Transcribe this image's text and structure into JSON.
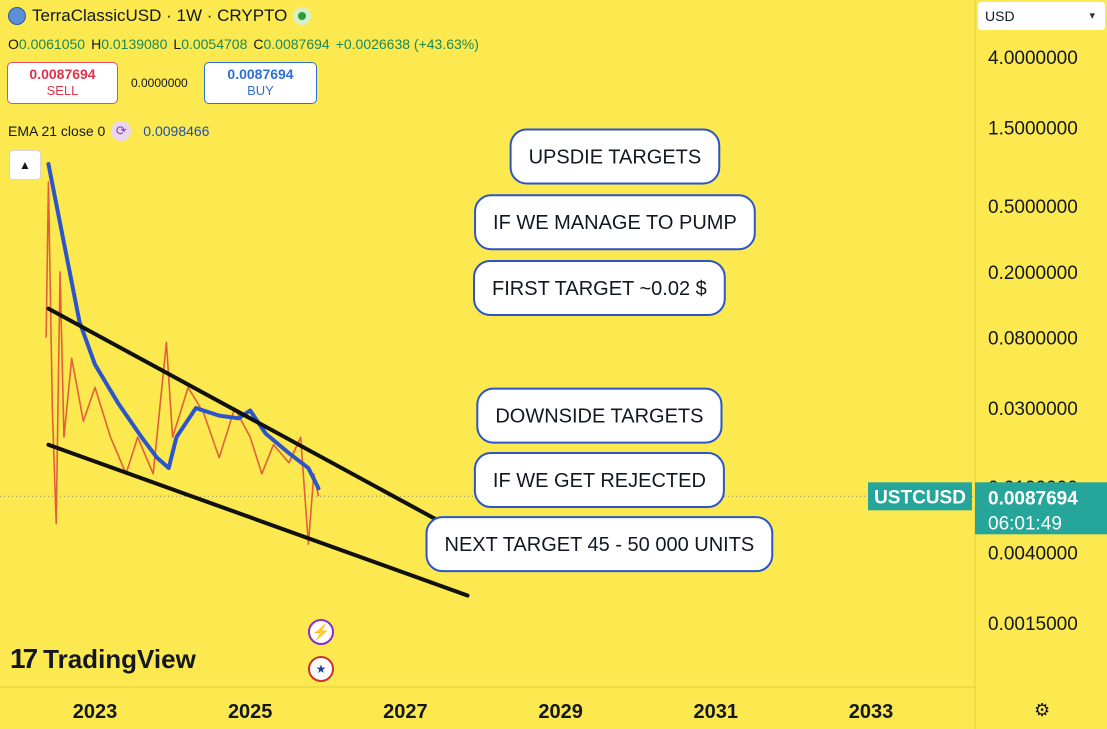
{
  "header": {
    "symbol_title": "TerraClassicUSD · 1W · CRYPTO",
    "logo_icon": "terra-logo-icon",
    "live_icon": "market-open-dot-icon"
  },
  "ohlc": {
    "o_label": "O",
    "o_value": "0.0061050",
    "h_label": "H",
    "h_value": "0.0139080",
    "l_label": "L",
    "l_value": "0.0054708",
    "c_label": "C",
    "c_value": "0.0087694",
    "change": "+0.0026638 (+43.63%)"
  },
  "trade": {
    "sell_price": "0.0087694",
    "sell_label": "SELL",
    "spread": "0.0000000",
    "buy_price": "0.0087694",
    "buy_label": "BUY"
  },
  "indicator": {
    "label": "EMA 21 close 0",
    "value": "0.0098466"
  },
  "currency": {
    "selected": "USD"
  },
  "price_tag": {
    "symbol": "USTCUSD",
    "price": "0.0087694",
    "countdown": "06:01:49"
  },
  "branding": {
    "logo_text": "TradingView",
    "logo_mark": "17"
  },
  "colors": {
    "background": "#FBE94F",
    "ema_line": "#2B55C8",
    "candle": "#E0503A",
    "trendline": "#111111",
    "price_tag": "#26A69A",
    "callout_border": "#2B55C8"
  },
  "chart_data": {
    "type": "line",
    "y_scale": "log",
    "y_ticks": [
      "4.0000000",
      "1.5000000",
      "0.5000000",
      "0.2000000",
      "0.0800000",
      "0.0300000",
      "0.0100000",
      "0.0040000",
      "0.0015000"
    ],
    "x_ticks": [
      "2023",
      "2025",
      "2027",
      "2029",
      "2031",
      "2033"
    ],
    "current_price": 0.0087694,
    "ema_series": {
      "name": "EMA 21 close 0",
      "points": [
        [
          2022.4,
          0.9
        ],
        [
          2022.6,
          0.3
        ],
        [
          2022.8,
          0.1
        ],
        [
          2023.0,
          0.055
        ],
        [
          2023.3,
          0.032
        ],
        [
          2023.6,
          0.02
        ],
        [
          2023.8,
          0.015
        ],
        [
          2023.95,
          0.013
        ],
        [
          2024.05,
          0.02
        ],
        [
          2024.3,
          0.03
        ],
        [
          2024.6,
          0.027
        ],
        [
          2024.85,
          0.026
        ],
        [
          2025.0,
          0.029
        ],
        [
          2025.2,
          0.021
        ],
        [
          2025.5,
          0.016
        ],
        [
          2025.75,
          0.013
        ],
        [
          2025.88,
          0.0098
        ]
      ]
    },
    "price_series": {
      "name": "TerraClassicUSD",
      "points": [
        [
          2022.37,
          0.08
        ],
        [
          2022.4,
          0.7
        ],
        [
          2022.45,
          0.03
        ],
        [
          2022.5,
          0.006
        ],
        [
          2022.55,
          0.2
        ],
        [
          2022.6,
          0.02
        ],
        [
          2022.7,
          0.06
        ],
        [
          2022.85,
          0.025
        ],
        [
          2023.0,
          0.04
        ],
        [
          2023.2,
          0.02
        ],
        [
          2023.4,
          0.012
        ],
        [
          2023.55,
          0.02
        ],
        [
          2023.75,
          0.012
        ],
        [
          2023.92,
          0.075
        ],
        [
          2024.0,
          0.02
        ],
        [
          2024.2,
          0.04
        ],
        [
          2024.4,
          0.028
        ],
        [
          2024.6,
          0.015
        ],
        [
          2024.8,
          0.03
        ],
        [
          2025.0,
          0.02
        ],
        [
          2025.15,
          0.012
        ],
        [
          2025.3,
          0.018
        ],
        [
          2025.5,
          0.014
        ],
        [
          2025.65,
          0.02
        ],
        [
          2025.75,
          0.0045
        ],
        [
          2025.82,
          0.012
        ],
        [
          2025.88,
          0.0087694
        ]
      ]
    },
    "trendlines": [
      {
        "from": [
          2022.4,
          0.12
        ],
        "to": [
          2028.1,
          0.0042
        ]
      },
      {
        "from": [
          2022.4,
          0.018
        ],
        "to": [
          2027.8,
          0.0022
        ]
      }
    ],
    "annotations": [
      {
        "text": "UPSDIE TARGETS",
        "anchor": [
          2029.7,
          1.0
        ]
      },
      {
        "text": "IF WE MANAGE TO PUMP",
        "anchor": [
          2029.7,
          0.4
        ]
      },
      {
        "text": "FIRST TARGET ~0.02 $",
        "anchor": [
          2029.5,
          0.16
        ]
      },
      {
        "text": "DOWNSIDE TARGETS",
        "anchor": [
          2029.5,
          0.027
        ]
      },
      {
        "text": "IF WE GET REJECTED",
        "anchor": [
          2029.5,
          0.011
        ]
      },
      {
        "text": "NEXT TARGET 45 - 50 000 UNITS",
        "anchor": [
          2029.5,
          0.0045
        ]
      }
    ]
  },
  "icons": {
    "collapse": "chevron-up-icon",
    "event1": "lightning-event-icon",
    "event2": "us-flag-icon",
    "settings": "settings-icon",
    "ema_toggle": "refresh-icon"
  }
}
